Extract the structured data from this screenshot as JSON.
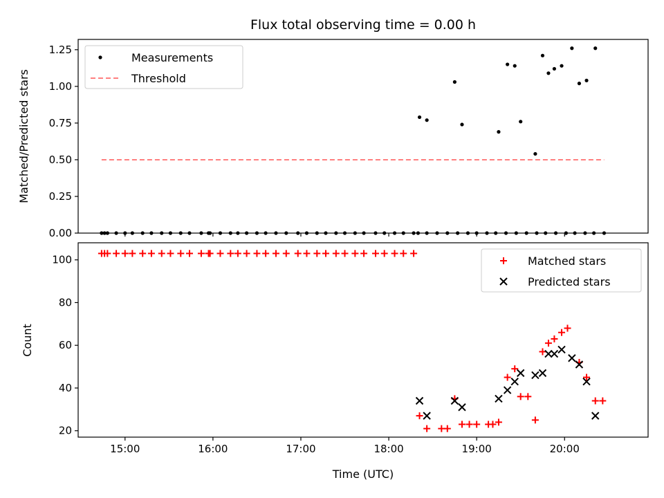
{
  "chart_data": [
    {
      "type": "scatter",
      "title": "Flux total observing time = 0.00 h",
      "xlabel": "",
      "ylabel": "Matched/Predicted stars",
      "xlim": [
        "14:28",
        "20:57"
      ],
      "ylim": [
        0,
        1.32
      ],
      "yticks": [
        0.0,
        0.25,
        0.5,
        0.75,
        1.0,
        1.25
      ],
      "ytick_labels": [
        "0.00",
        "0.25",
        "0.50",
        "0.75",
        "1.00",
        "1.25"
      ],
      "legend_position": "top-left",
      "series": [
        {
          "name": "Measurements",
          "style": "dot",
          "color": "#000000",
          "points": [
            [
              "14:44",
              0.0
            ],
            [
              "14:46",
              0.0
            ],
            [
              "14:48",
              0.0
            ],
            [
              "14:54",
              0.0
            ],
            [
              "15:00",
              0.0
            ],
            [
              "15:05",
              0.0
            ],
            [
              "15:12",
              0.0
            ],
            [
              "15:18",
              0.0
            ],
            [
              "15:25",
              0.0
            ],
            [
              "15:31",
              0.0
            ],
            [
              "15:38",
              0.0
            ],
            [
              "15:44",
              0.0
            ],
            [
              "15:52",
              0.0
            ],
            [
              "15:57",
              0.0
            ],
            [
              "15:58",
              0.0
            ],
            [
              "16:05",
              0.0
            ],
            [
              "16:12",
              0.0
            ],
            [
              "16:17",
              0.0
            ],
            [
              "16:23",
              0.0
            ],
            [
              "16:30",
              0.0
            ],
            [
              "16:36",
              0.0
            ],
            [
              "16:43",
              0.0
            ],
            [
              "16:50",
              0.0
            ],
            [
              "16:58",
              0.0
            ],
            [
              "17:04",
              0.0
            ],
            [
              "17:11",
              0.0
            ],
            [
              "17:17",
              0.0
            ],
            [
              "17:24",
              0.0
            ],
            [
              "17:30",
              0.0
            ],
            [
              "17:37",
              0.0
            ],
            [
              "17:43",
              0.0
            ],
            [
              "17:51",
              0.0
            ],
            [
              "17:57",
              0.0
            ],
            [
              "18:04",
              0.0
            ],
            [
              "18:10",
              0.0
            ],
            [
              "18:17",
              0.0
            ],
            [
              "18:20",
              0.0
            ],
            [
              "18:26",
              0.0
            ],
            [
              "18:33",
              0.0
            ],
            [
              "18:40",
              0.0
            ],
            [
              "18:47",
              0.0
            ],
            [
              "18:54",
              0.0
            ],
            [
              "19:00",
              0.0
            ],
            [
              "19:07",
              0.0
            ],
            [
              "19:13",
              0.0
            ],
            [
              "19:20",
              0.0
            ],
            [
              "19:27",
              0.0
            ],
            [
              "19:34",
              0.0
            ],
            [
              "19:41",
              0.0
            ],
            [
              "19:47",
              0.0
            ],
            [
              "19:54",
              0.0
            ],
            [
              "20:01",
              0.0
            ],
            [
              "20:07",
              0.0
            ],
            [
              "20:14",
              0.0
            ],
            [
              "20:20",
              0.0
            ],
            [
              "20:27",
              0.0
            ],
            [
              "18:21",
              0.79
            ],
            [
              "18:26",
              0.77
            ],
            [
              "18:45",
              1.03
            ],
            [
              "18:50",
              0.74
            ],
            [
              "19:15",
              0.69
            ],
            [
              "19:21",
              1.15
            ],
            [
              "19:26",
              1.14
            ],
            [
              "19:30",
              0.76
            ],
            [
              "19:40",
              0.54
            ],
            [
              "19:45",
              1.21
            ],
            [
              "19:49",
              1.09
            ],
            [
              "19:53",
              1.12
            ],
            [
              "19:58",
              1.14
            ],
            [
              "20:05",
              1.26
            ],
            [
              "20:10",
              1.02
            ],
            [
              "20:15",
              1.04
            ],
            [
              "20:21",
              1.26
            ]
          ]
        },
        {
          "name": "Threshold",
          "style": "dashed-line",
          "color": "#ff7f7f",
          "points": [
            [
              "14:44",
              0.5
            ],
            [
              "20:27",
              0.5
            ]
          ]
        }
      ]
    },
    {
      "type": "scatter",
      "title": "",
      "xlabel": "Time (UTC)",
      "ylabel": "Count",
      "xlim": [
        "14:28",
        "20:57"
      ],
      "ylim": [
        17,
        108
      ],
      "yticks": [
        20,
        40,
        60,
        80,
        100
      ],
      "ytick_labels": [
        "20",
        "40",
        "60",
        "80",
        "100"
      ],
      "xticks": [
        "15:00",
        "16:00",
        "17:00",
        "18:00",
        "19:00",
        "20:00"
      ],
      "xtick_labels": [
        "15:00",
        "16:00",
        "17:00",
        "18:00",
        "19:00",
        "20:00"
      ],
      "legend_position": "top-right",
      "series": [
        {
          "name": "Matched stars",
          "style": "plus",
          "color": "#ff0000",
          "points": [
            [
              "14:44",
              103
            ],
            [
              "14:46",
              103
            ],
            [
              "14:48",
              103
            ],
            [
              "14:54",
              103
            ],
            [
              "15:00",
              103
            ],
            [
              "15:05",
              103
            ],
            [
              "15:12",
              103
            ],
            [
              "15:18",
              103
            ],
            [
              "15:25",
              103
            ],
            [
              "15:31",
              103
            ],
            [
              "15:38",
              103
            ],
            [
              "15:44",
              103
            ],
            [
              "15:52",
              103
            ],
            [
              "15:57",
              103
            ],
            [
              "15:58",
              103
            ],
            [
              "16:05",
              103
            ],
            [
              "16:12",
              103
            ],
            [
              "16:17",
              103
            ],
            [
              "16:23",
              103
            ],
            [
              "16:30",
              103
            ],
            [
              "16:36",
              103
            ],
            [
              "16:43",
              103
            ],
            [
              "16:50",
              103
            ],
            [
              "16:58",
              103
            ],
            [
              "17:04",
              103
            ],
            [
              "17:11",
              103
            ],
            [
              "17:17",
              103
            ],
            [
              "17:24",
              103
            ],
            [
              "17:30",
              103
            ],
            [
              "17:37",
              103
            ],
            [
              "17:43",
              103
            ],
            [
              "17:51",
              103
            ],
            [
              "17:57",
              103
            ],
            [
              "18:04",
              103
            ],
            [
              "18:10",
              103
            ],
            [
              "18:17",
              103
            ],
            [
              "18:21",
              27
            ],
            [
              "18:26",
              21
            ],
            [
              "18:36",
              21
            ],
            [
              "18:40",
              21
            ],
            [
              "18:45",
              35
            ],
            [
              "18:50",
              23
            ],
            [
              "18:55",
              23
            ],
            [
              "19:00",
              23
            ],
            [
              "19:08",
              23
            ],
            [
              "19:11",
              23
            ],
            [
              "19:15",
              24
            ],
            [
              "19:21",
              45
            ],
            [
              "19:26",
              49
            ],
            [
              "19:30",
              36
            ],
            [
              "19:35",
              36
            ],
            [
              "19:40",
              25
            ],
            [
              "19:45",
              57
            ],
            [
              "19:49",
              61
            ],
            [
              "19:53",
              63
            ],
            [
              "19:58",
              66
            ],
            [
              "20:02",
              68
            ],
            [
              "20:10",
              52
            ],
            [
              "20:15",
              45
            ],
            [
              "20:21",
              34
            ],
            [
              "20:26",
              34
            ]
          ]
        },
        {
          "name": "Predicted stars",
          "style": "x",
          "color": "#000000",
          "points": [
            [
              "18:21",
              34
            ],
            [
              "18:26",
              27
            ],
            [
              "18:45",
              34
            ],
            [
              "18:50",
              31
            ],
            [
              "19:15",
              35
            ],
            [
              "19:21",
              39
            ],
            [
              "19:26",
              43
            ],
            [
              "19:30",
              47
            ],
            [
              "19:40",
              46
            ],
            [
              "19:45",
              47
            ],
            [
              "19:49",
              56
            ],
            [
              "19:53",
              56
            ],
            [
              "19:58",
              58
            ],
            [
              "20:05",
              54
            ],
            [
              "20:10",
              51
            ],
            [
              "20:15",
              43
            ],
            [
              "20:21",
              27
            ]
          ]
        }
      ]
    }
  ]
}
